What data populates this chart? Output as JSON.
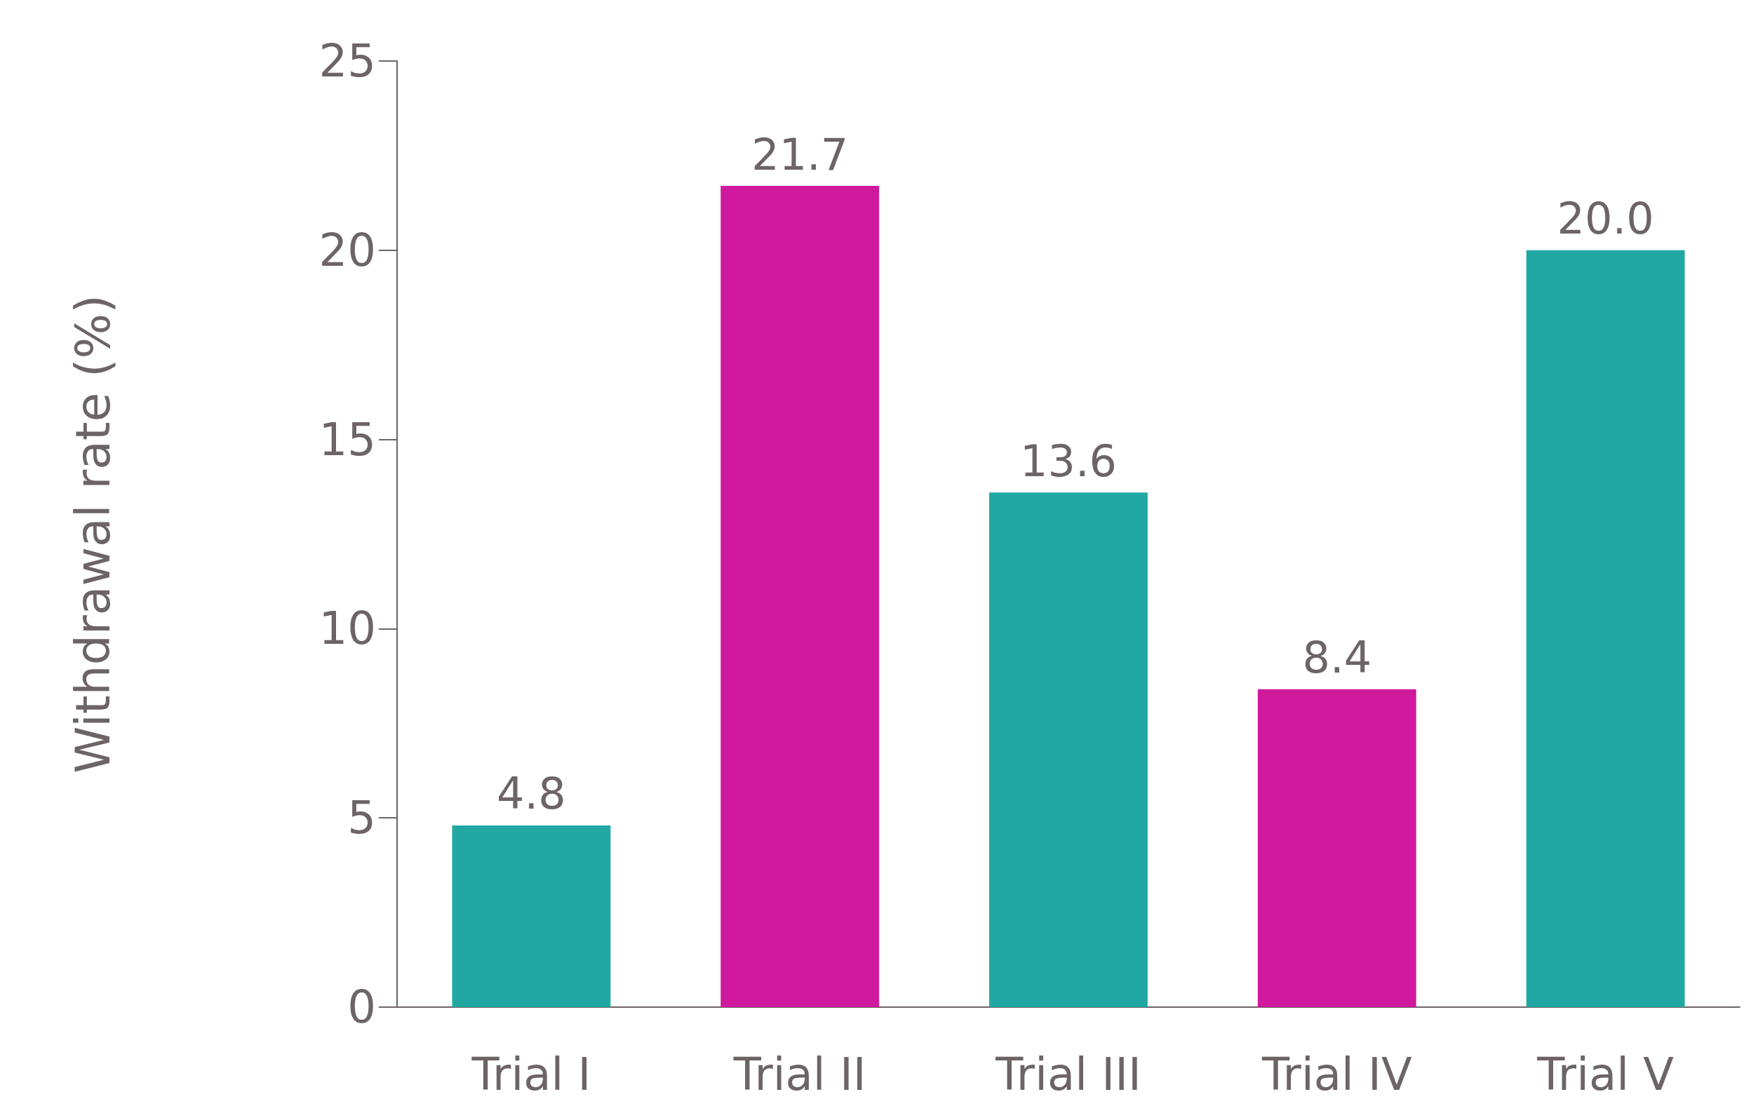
{
  "chart_data": {
    "type": "bar",
    "ylabel": "Withdrawal rate (%)",
    "categories": [
      "Trial I",
      "Trial II",
      "Trial III",
      "Trial IV",
      "Trial V"
    ],
    "values": [
      4.8,
      21.7,
      13.6,
      8.4,
      20.0
    ],
    "value_labels": [
      "4.8",
      "21.7",
      "13.6",
      "8.4",
      "20.0"
    ],
    "colors": [
      "#22a8a2",
      "#cf1a9e",
      "#22a8a2",
      "#cf1a9e",
      "#22a8a2"
    ],
    "ylim": [
      0,
      25
    ],
    "yticks": [
      0,
      5,
      10,
      15,
      20,
      25
    ],
    "grid": false
  }
}
